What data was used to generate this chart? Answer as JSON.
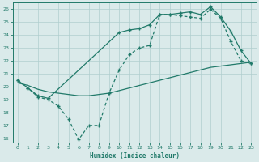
{
  "xlabel": "Humidex (Indice chaleur)",
  "bg_color": "#daeaea",
  "grid_color": "#b0cece",
  "line_color": "#217a6a",
  "xlim": [
    -0.5,
    23.5
  ],
  "ylim": [
    15.7,
    26.5
  ],
  "xticks": [
    0,
    1,
    2,
    3,
    4,
    5,
    6,
    7,
    8,
    9,
    10,
    11,
    12,
    13,
    14,
    15,
    16,
    17,
    18,
    19,
    20,
    21,
    22,
    23
  ],
  "yticks": [
    16,
    17,
    18,
    19,
    20,
    21,
    22,
    23,
    24,
    25,
    26
  ],
  "line1_x": [
    0,
    1,
    2,
    3,
    10,
    11,
    12,
    13,
    14,
    15,
    16,
    17,
    18,
    19,
    20,
    21,
    22,
    23
  ],
  "line1_y": [
    20.5,
    19.9,
    19.3,
    19.1,
    24.2,
    24.4,
    24.5,
    24.8,
    25.6,
    25.6,
    25.7,
    25.8,
    25.6,
    26.2,
    25.4,
    24.3,
    22.8,
    21.8
  ],
  "line2_x": [
    0,
    1,
    2,
    3,
    4,
    5,
    6,
    7,
    8,
    9,
    10,
    11,
    12,
    13,
    14,
    15,
    16,
    17,
    18,
    19,
    20,
    21,
    22,
    23
  ],
  "line2_y": [
    20.5,
    19.9,
    19.2,
    19.0,
    18.5,
    17.5,
    15.9,
    17.0,
    17.0,
    19.5,
    21.3,
    22.5,
    23.0,
    23.2,
    25.6,
    25.6,
    25.5,
    25.4,
    25.3,
    26.0,
    25.3,
    23.5,
    22.0,
    21.8
  ],
  "line3_x": [
    0,
    1,
    2,
    3,
    4,
    5,
    6,
    7,
    8,
    9,
    10,
    14,
    19,
    20,
    21,
    22,
    23
  ],
  "line3_y": [
    20.3,
    20.1,
    19.8,
    19.6,
    19.5,
    19.4,
    19.3,
    19.3,
    19.4,
    19.5,
    19.7,
    20.5,
    21.5,
    21.6,
    21.7,
    21.8,
    21.9
  ]
}
